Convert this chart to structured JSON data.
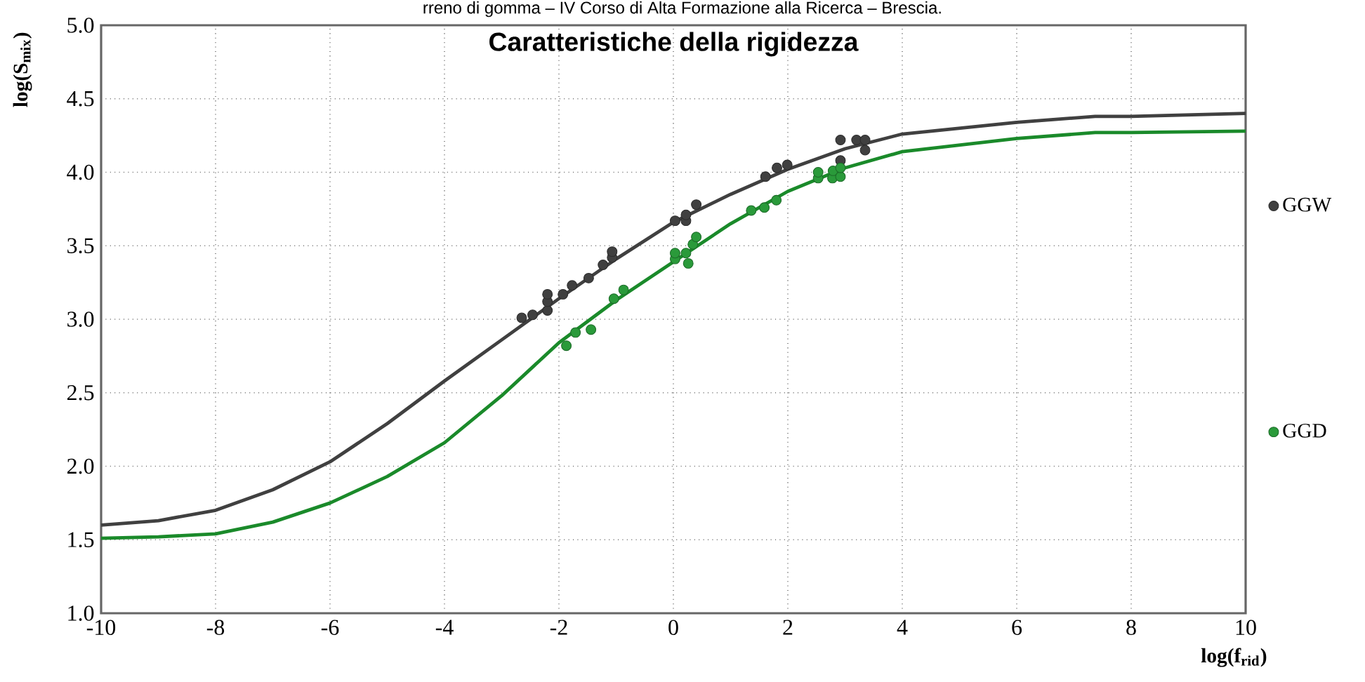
{
  "chart_data": {
    "type": "scatter",
    "title": "Caratteristiche della rigidezza",
    "xlabel": "log(f$_{rid}$)",
    "ylabel": "log(S$_{mix}$)",
    "annotations": [
      "rreno di gomma – IV Corso di Alta Formazione alla Ricerca – Brescia."
    ],
    "xlim": [
      -10,
      10
    ],
    "ylim": [
      1.0,
      5.0
    ],
    "xticks": [
      -10,
      -8,
      -6,
      -4,
      -2,
      0,
      2,
      4,
      6,
      8,
      10
    ],
    "yticks": [
      {
        "value": 1.0,
        "label": "1.0"
      },
      {
        "value": 1.5,
        "label": "1.5"
      },
      {
        "value": 2.0,
        "label": "2.0"
      },
      {
        "value": 2.5,
        "label": "2.5"
      },
      {
        "value": 3.0,
        "label": "3.0"
      },
      {
        "value": 3.5,
        "label": "3.5"
      },
      {
        "value": 4.0,
        "label": "4.0"
      },
      {
        "value": 4.5,
        "label": "4.5"
      },
      {
        "value": 5.0,
        "label": "5.0"
      }
    ],
    "grid": true,
    "legend": "right",
    "marker": "circle",
    "series": [
      {
        "name": "GGW",
        "color": "#404040",
        "x": [
          -2.65,
          -2.46,
          -2.2,
          -2.2,
          -2.2,
          -1.93,
          -1.77,
          -1.48,
          -1.23,
          -1.07,
          -1.07,
          0.03,
          0.22,
          0.22,
          0.4,
          1.61,
          1.81,
          1.99,
          2.92,
          2.92,
          3.2,
          3.35,
          3.35
        ],
        "values": [
          3.01,
          3.03,
          3.06,
          3.12,
          3.17,
          3.17,
          3.23,
          3.28,
          3.37,
          3.42,
          3.46,
          3.67,
          3.67,
          3.71,
          3.78,
          3.97,
          4.03,
          4.05,
          4.08,
          4.22,
          4.22,
          4.22,
          4.15
        ]
      },
      {
        "name": "GGD",
        "color": "#2a9a3a",
        "x": [
          -1.87,
          -1.71,
          -1.44,
          -1.04,
          -0.87,
          0.03,
          0.03,
          0.22,
          0.26,
          0.34,
          0.4,
          1.36,
          1.59,
          1.8,
          2.53,
          2.53,
          2.78,
          2.79,
          2.92,
          2.92
        ],
        "values": [
          2.82,
          2.91,
          2.93,
          3.14,
          3.2,
          3.41,
          3.45,
          3.45,
          3.38,
          3.51,
          3.56,
          3.74,
          3.76,
          3.81,
          3.96,
          4.0,
          3.96,
          4.01,
          3.97,
          4.03
        ]
      },
      {
        "type": "line",
        "color": "#404040",
        "marker": "none",
        "x": [
          -10,
          -9,
          -8,
          -7,
          -6,
          -5,
          -4,
          -3,
          -2,
          -1,
          0,
          1,
          2,
          3,
          4,
          6,
          7.37,
          8,
          10
        ],
        "values": [
          1.6,
          1.63,
          1.7,
          1.84,
          2.03,
          2.29,
          2.58,
          2.86,
          3.14,
          3.41,
          3.66,
          3.85,
          4.02,
          4.16,
          4.26,
          4.34,
          4.38,
          4.38,
          4.4
        ]
      },
      {
        "type": "line",
        "color": "#1a8a2a",
        "marker": "none",
        "x": [
          -10,
          -9,
          -8,
          -7,
          -6,
          -5,
          -4,
          -3,
          -2,
          -1,
          0,
          1,
          2,
          3,
          4,
          6,
          7.37,
          8,
          10
        ],
        "values": [
          1.51,
          1.52,
          1.54,
          1.62,
          1.75,
          1.93,
          2.16,
          2.48,
          2.84,
          3.13,
          3.39,
          3.65,
          3.87,
          4.03,
          4.14,
          4.23,
          4.27,
          4.27,
          4.28
        ]
      }
    ]
  }
}
